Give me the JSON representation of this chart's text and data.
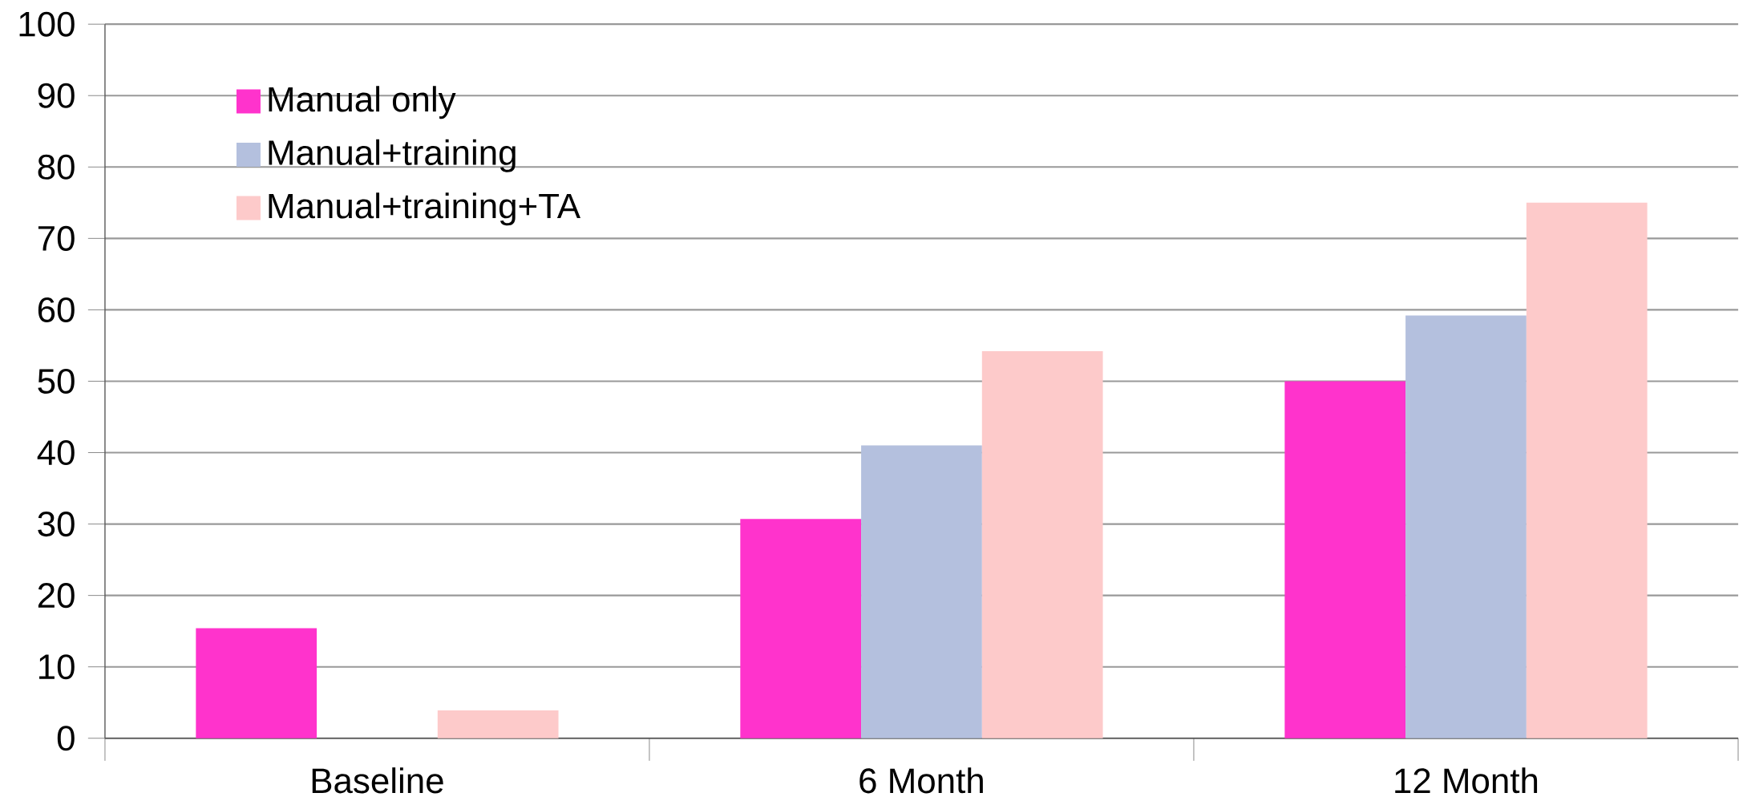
{
  "chart_data": {
    "type": "bar",
    "categories": [
      "Baseline",
      "6 Month",
      "12 Month"
    ],
    "series": [
      {
        "name": "Manual only",
        "color": "#ff33cc",
        "values": [
          15.4,
          30.7,
          50.0
        ]
      },
      {
        "name": "Manual+training",
        "color": "#b4c0de",
        "values": [
          null,
          41.0,
          59.2
        ]
      },
      {
        "name": "Manual+training+TA",
        "color": "#fdcaca",
        "values": [
          3.9,
          54.2,
          75.0
        ]
      }
    ],
    "ylim": [
      0,
      100
    ],
    "yticks": [
      0,
      10,
      20,
      30,
      40,
      50,
      60,
      70,
      80,
      90,
      100
    ],
    "grid": "y",
    "legend": "top left"
  }
}
